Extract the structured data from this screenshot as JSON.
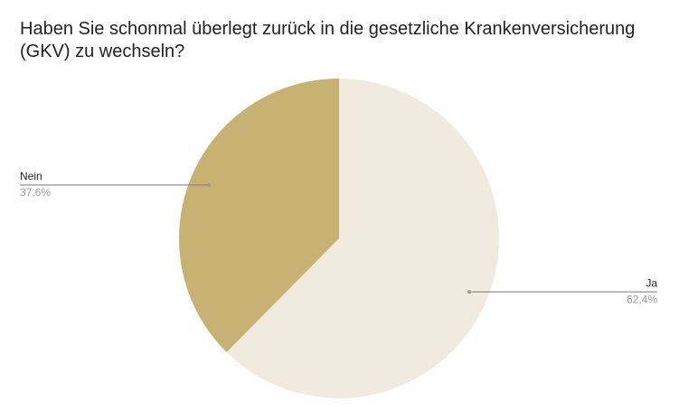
{
  "chart_data": {
    "type": "pie",
    "title": "Haben Sie schonmal überlegt zurück in die gesetzliche Krankenversicherung (GKV) zu wechseln?",
    "categories": [
      "Ja",
      "Nein"
    ],
    "values": [
      62.4,
      37.6
    ],
    "value_labels": [
      "62,4%",
      "37,6%"
    ],
    "colors": [
      "#f1ebdf",
      "#c8b273"
    ]
  }
}
